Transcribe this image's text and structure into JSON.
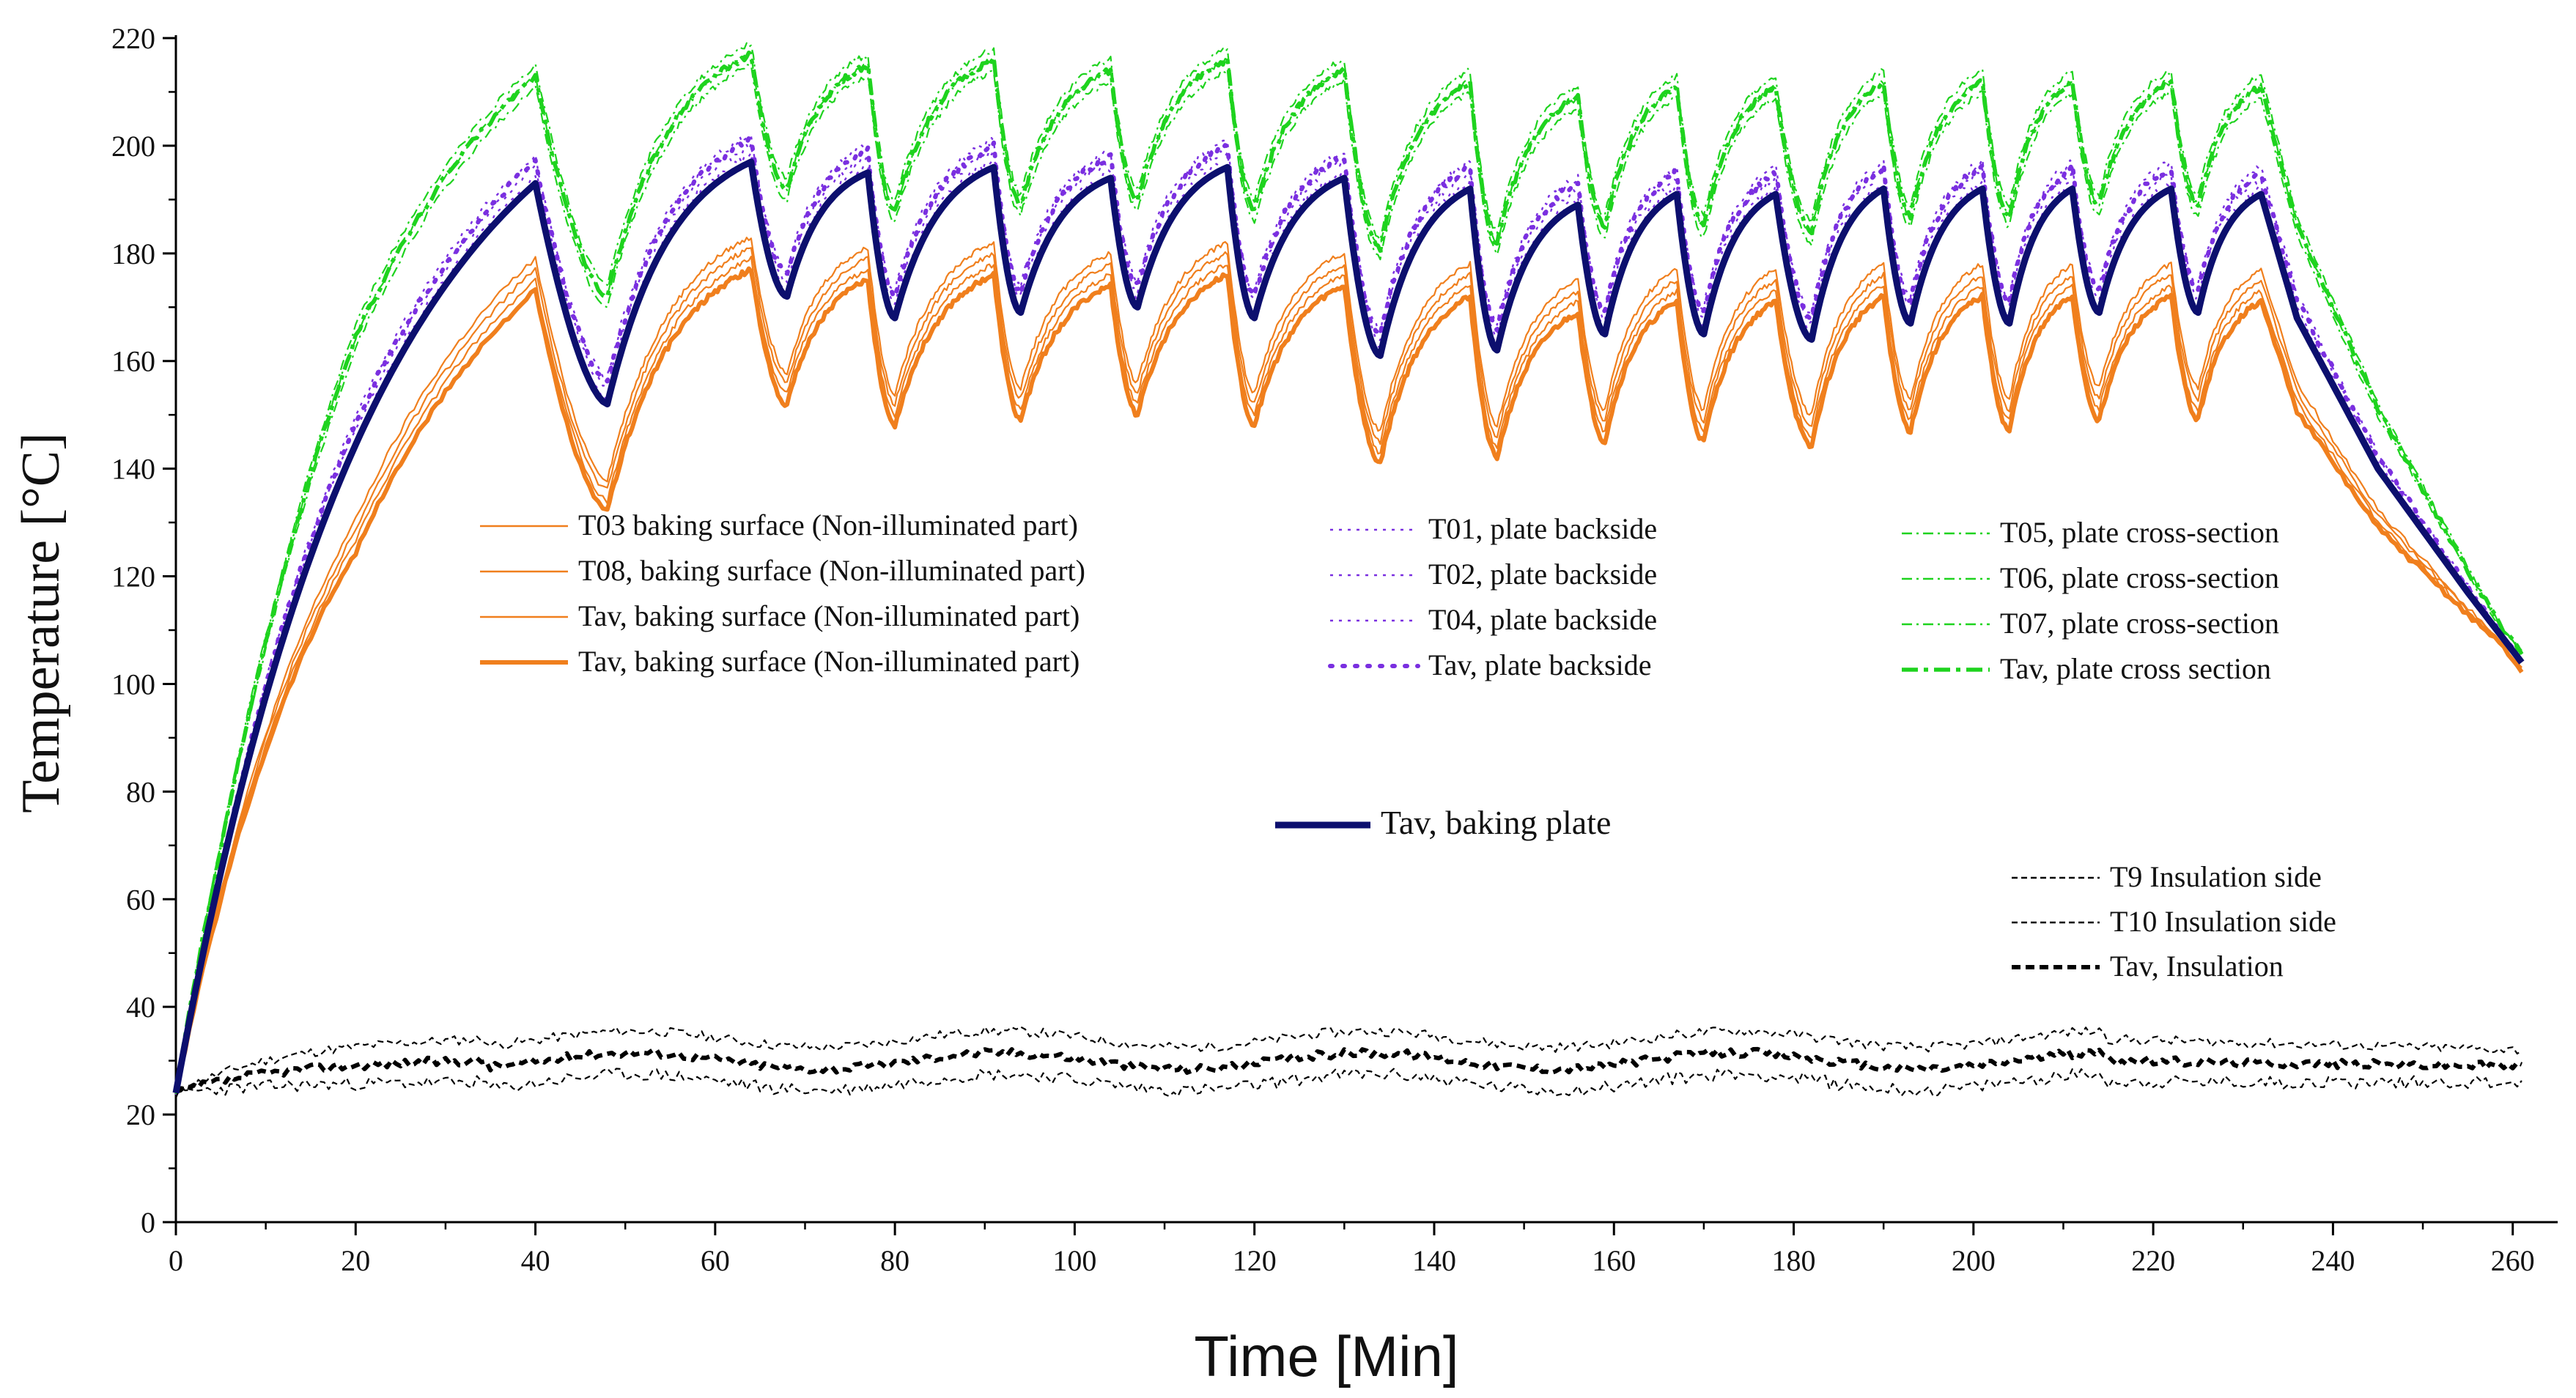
{
  "chart_data": {
    "type": "line",
    "title": "",
    "xlabel": "Time [Min]",
    "ylabel": "Temperature [°C]",
    "xlim": [
      0,
      265
    ],
    "ylim": [
      0,
      220
    ],
    "xticks": [
      0,
      20,
      40,
      60,
      80,
      100,
      120,
      140,
      160,
      180,
      200,
      220,
      240,
      260
    ],
    "yticks": [
      0,
      20,
      40,
      60,
      80,
      100,
      120,
      140,
      160,
      180,
      200,
      220
    ],
    "grid": false,
    "cycles": [
      {
        "start": 48,
        "peak": 64,
        "min_plate": 152,
        "peak_plate": 197
      },
      {
        "start": 68,
        "peak": 77,
        "min_plate": 172,
        "peak_plate": 195
      },
      {
        "start": 80,
        "peak": 91,
        "min_plate": 168,
        "peak_plate": 196
      },
      {
        "start": 94,
        "peak": 104,
        "min_plate": 169,
        "peak_plate": 194
      },
      {
        "start": 107,
        "peak": 117,
        "min_plate": 170,
        "peak_plate": 196
      },
      {
        "start": 120,
        "peak": 130,
        "min_plate": 168,
        "peak_plate": 194
      },
      {
        "start": 134,
        "peak": 144,
        "min_plate": 161,
        "peak_plate": 192
      },
      {
        "start": 147,
        "peak": 156,
        "min_plate": 162,
        "peak_plate": 189
      },
      {
        "start": 159,
        "peak": 167,
        "min_plate": 165,
        "peak_plate": 191
      },
      {
        "start": 170,
        "peak": 178,
        "min_plate": 165,
        "peak_plate": 191
      },
      {
        "start": 182,
        "peak": 190,
        "min_plate": 164,
        "peak_plate": 192
      },
      {
        "start": 193,
        "peak": 201,
        "min_plate": 167,
        "peak_plate": 192
      },
      {
        "start": 204,
        "peak": 211,
        "min_plate": 167,
        "peak_plate": 192
      },
      {
        "start": 214,
        "peak": 222,
        "min_plate": 169,
        "peak_plate": 192
      },
      {
        "start": 225,
        "peak": 232,
        "min_plate": 169,
        "peak_plate": 191
      }
    ],
    "offsets": {
      "T03": -14,
      "T08": -18,
      "Tav_surface_1": -16,
      "Tav_surface_2": -20,
      "T01": 3,
      "T02": 5,
      "T04": 1,
      "Tav_backside": 4,
      "T05": 22,
      "T06": 20,
      "T07": 18,
      "Tav_cross": 20
    },
    "warmup": [
      [
        0,
        24
      ],
      [
        10,
        100
      ],
      [
        20,
        134
      ],
      [
        30,
        165
      ],
      [
        40,
        193
      ],
      [
        48,
        152
      ]
    ],
    "cooldown": [
      [
        232,
        191
      ],
      [
        236,
        168
      ],
      [
        245,
        140
      ],
      [
        255,
        117
      ],
      [
        261,
        104
      ]
    ],
    "insulation": {
      "T9_level": 34,
      "T10_level": 26,
      "Tav_level": 30,
      "start": 24,
      "end_T9": 32,
      "end_T10": 26,
      "end_Tav": 29
    },
    "series": [
      {
        "name": "T03 baking surface (Non-illuminated part)",
        "color": "#f07f1d",
        "style": "solid-thin",
        "group": "surface",
        "key": "T03"
      },
      {
        "name": "T08, baking surface (Non-illuminated part)",
        "color": "#f07f1d",
        "style": "solid-thin",
        "group": "surface",
        "key": "T08"
      },
      {
        "name": "Tav, baking surface (Non-illuminated part)",
        "color": "#f07f1d",
        "style": "solid-thin",
        "group": "surface",
        "key": "Tav_surface_1"
      },
      {
        "name": "Tav, baking surface (Non-illuminated part)",
        "color": "#f07f1d",
        "style": "solid-thick",
        "group": "surface",
        "key": "Tav_surface_2"
      },
      {
        "name": "T01, plate backside",
        "color": "#7a2fe0",
        "style": "dotted-thin",
        "group": "backside",
        "key": "T01"
      },
      {
        "name": "T02, plate backside",
        "color": "#7a2fe0",
        "style": "dotted-thin",
        "group": "backside",
        "key": "T02"
      },
      {
        "name": "T04, plate backside",
        "color": "#7a2fe0",
        "style": "dotted-thin",
        "group": "backside",
        "key": "T04"
      },
      {
        "name": "Tav, plate backside",
        "color": "#7a2fe0",
        "style": "dotted-thick",
        "group": "backside",
        "key": "Tav_backside"
      },
      {
        "name": "T05, plate cross-section",
        "color": "#1ed31e",
        "style": "dashdot-thin",
        "group": "cross",
        "key": "T05"
      },
      {
        "name": "T06, plate cross-section",
        "color": "#1ed31e",
        "style": "dashdot-thin",
        "group": "cross",
        "key": "T06"
      },
      {
        "name": "T07, plate cross-section",
        "color": "#1ed31e",
        "style": "dashdot-thin",
        "group": "cross",
        "key": "T07"
      },
      {
        "name": "Tav, plate cross section",
        "color": "#1ed31e",
        "style": "dashdot-thick",
        "group": "cross",
        "key": "Tav_cross"
      },
      {
        "name": "Tav, baking plate",
        "color": "#0c0f6e",
        "style": "solid-heavy",
        "group": "plate",
        "key": "plate"
      },
      {
        "name": "T9 Insulation side",
        "color": "#000000",
        "style": "dashed-thin",
        "group": "insulation",
        "key": "T9"
      },
      {
        "name": "T10 Insulation side",
        "color": "#000000",
        "style": "dashed-thin",
        "group": "insulation",
        "key": "T10"
      },
      {
        "name": "Tav, Insulation",
        "color": "#000000",
        "style": "dashed-thick",
        "group": "insulation",
        "key": "Tav_ins"
      }
    ]
  }
}
